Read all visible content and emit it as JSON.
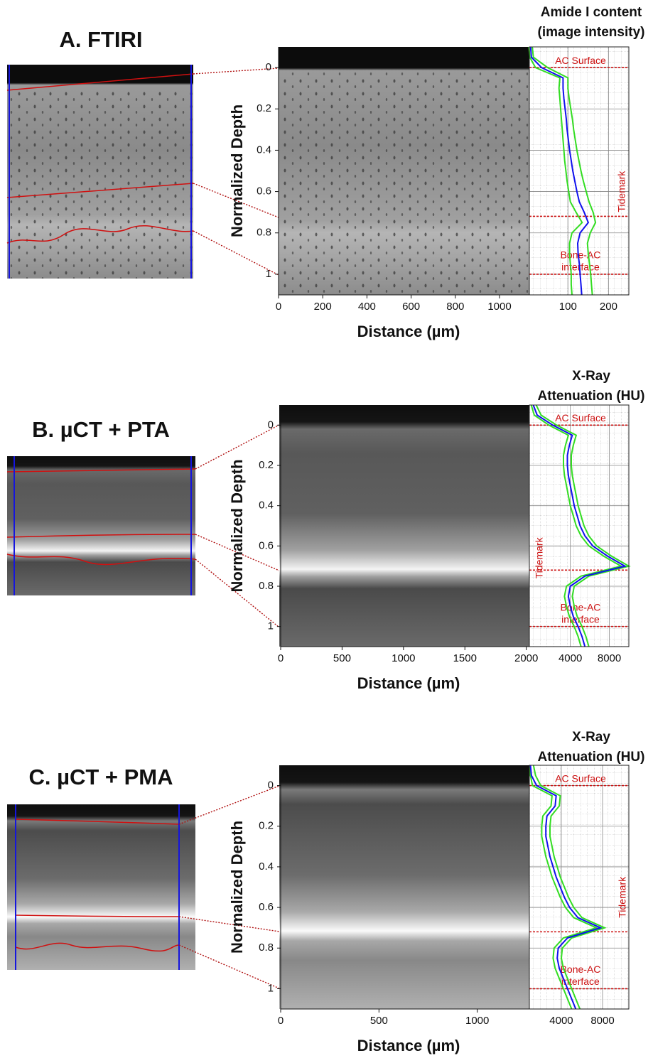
{
  "chart_data": [
    {
      "type": "line",
      "title": "A. FTIRI",
      "xlabel": "Distance (µm)",
      "ylabel": "Normalized Depth",
      "xlim": [
        0,
        1135
      ],
      "xticks": [
        0,
        200,
        400,
        600,
        800,
        1000
      ],
      "ylim": [
        -0.1,
        1.1
      ],
      "yticks": [
        0,
        0.2,
        0.4,
        0.6,
        0.8,
        1
      ],
      "profile_title": [
        "Amide I content",
        "(image intensity)"
      ],
      "profile_xlim": [
        5,
        250
      ],
      "profile_xticks": [
        100,
        200
      ],
      "grid": true,
      "depth": [
        -0.1,
        -0.05,
        0,
        0.05,
        0.1,
        0.15,
        0.2,
        0.25,
        0.3,
        0.35,
        0.4,
        0.45,
        0.5,
        0.55,
        0.6,
        0.65,
        0.7,
        0.75,
        0.8,
        0.85,
        0.9,
        0.95,
        1,
        1.05,
        1.1
      ],
      "series": [
        {
          "color": "#33dd22",
          "values": [
            12,
            15,
            50,
            100,
            100,
            103,
            107,
            111,
            114,
            118,
            122,
            127,
            132,
            138,
            145,
            152,
            162,
            168,
            155,
            148,
            150,
            153,
            156,
            158,
            160
          ]
        },
        {
          "color": "#33dd22",
          "values": [
            4,
            6,
            20,
            80,
            78,
            80,
            82,
            84,
            86,
            88,
            90,
            92,
            95,
            98,
            102,
            106,
            120,
            135,
            110,
            104,
            104,
            106,
            108,
            108,
            110
          ]
        },
        {
          "color": "#1010ee",
          "values": [
            8,
            10,
            35,
            88,
            88,
            90,
            93,
            96,
            98,
            101,
            104,
            108,
            112,
            117,
            122,
            128,
            140,
            150,
            130,
            124,
            125,
            128,
            130,
            132,
            134
          ]
        }
      ],
      "annotations": [
        {
          "text": [
            "AC Surface"
          ],
          "depth": 0
        },
        {
          "text": [
            "Tidemark"
          ],
          "depth": 0.72
        },
        {
          "text": [
            "Bone-AC",
            "interface"
          ],
          "depth": 1
        }
      ]
    },
    {
      "type": "line",
      "title": "B. µCT + PTA",
      "xlabel": "Distance (µm)",
      "ylabel": "Normalized Depth",
      "xlim": [
        0,
        2025
      ],
      "xticks": [
        0,
        500,
        1000,
        1500,
        2000
      ],
      "ylim": [
        -0.1,
        1.1
      ],
      "yticks": [
        0,
        0.2,
        0.4,
        0.6,
        0.8,
        1
      ],
      "profile_title": [
        "X-Ray",
        "Attenuation (HU)"
      ],
      "profile_xlim": [
        -200,
        10000
      ],
      "profile_xticks": [
        4000,
        8000
      ],
      "grid": true,
      "depth": [
        -0.1,
        -0.05,
        0,
        0.05,
        0.1,
        0.15,
        0.2,
        0.25,
        0.3,
        0.35,
        0.4,
        0.45,
        0.5,
        0.55,
        0.6,
        0.65,
        0.7,
        0.75,
        0.8,
        0.85,
        0.9,
        0.95,
        1,
        1.05,
        1.1
      ],
      "series": [
        {
          "color": "#33dd22",
          "values": [
            500,
            1000,
            2600,
            4600,
            4300,
            4100,
            4100,
            4200,
            4400,
            4600,
            4800,
            5100,
            5400,
            5900,
            6700,
            8200,
            10000,
            5900,
            4400,
            4200,
            4400,
            4700,
            5200,
            5600,
            5900
          ]
        },
        {
          "color": "#33dd22",
          "values": [
            0,
            300,
            1800,
            3800,
            3500,
            3300,
            3300,
            3400,
            3600,
            3800,
            4000,
            4300,
            4600,
            5100,
            5900,
            7400,
            9200,
            5100,
            3600,
            3400,
            3600,
            3900,
            4400,
            4800,
            5100
          ]
        },
        {
          "color": "#1010ee",
          "values": [
            200,
            600,
            2200,
            4200,
            3900,
            3700,
            3700,
            3800,
            4000,
            4200,
            4400,
            4700,
            5000,
            5500,
            6300,
            7800,
            9600,
            5500,
            4000,
            3800,
            4000,
            4300,
            4800,
            5200,
            5500
          ]
        }
      ],
      "annotations": [
        {
          "text": [
            "AC Surface"
          ],
          "depth": 0
        },
        {
          "text": [
            "Tidemark"
          ],
          "depth": 0.72
        },
        {
          "text": [
            "Bone-AC",
            "interface"
          ],
          "depth": 1
        }
      ]
    },
    {
      "type": "line",
      "title": "C. µCT + PMA",
      "xlabel": "Distance (µm)",
      "ylabel": "Normalized Depth",
      "xlim": [
        0,
        1265
      ],
      "xticks": [
        0,
        500,
        1000
      ],
      "ylim": [
        -0.1,
        1.1
      ],
      "yticks": [
        0,
        0.2,
        0.4,
        0.6,
        0.8,
        1
      ],
      "profile_title": [
        "X-Ray",
        "Attenuation (HU)"
      ],
      "profile_xlim": [
        900,
        10550
      ],
      "profile_xticks": [
        4000,
        8000
      ],
      "grid": true,
      "depth": [
        -0.1,
        -0.05,
        0,
        0.05,
        0.1,
        0.15,
        0.2,
        0.25,
        0.3,
        0.35,
        0.4,
        0.45,
        0.5,
        0.55,
        0.6,
        0.65,
        0.7,
        0.75,
        0.8,
        0.85,
        0.9,
        0.95,
        1,
        1.05,
        1.1
      ],
      "series": [
        {
          "color": "#33dd22",
          "values": [
            1300,
            1500,
            2000,
            3900,
            3800,
            3000,
            2900,
            2900,
            3100,
            3300,
            3600,
            3900,
            4300,
            4700,
            5200,
            6000,
            8200,
            5000,
            4100,
            4000,
            4200,
            4600,
            5000,
            5400,
            5800
          ]
        },
        {
          "color": "#33dd22",
          "values": [
            950,
            1000,
            1200,
            3100,
            3000,
            2200,
            2100,
            2100,
            2300,
            2500,
            2800,
            3100,
            3500,
            3900,
            4400,
            5200,
            7400,
            4200,
            3300,
            3200,
            3400,
            3800,
            4200,
            4600,
            5000
          ]
        },
        {
          "color": "#1010ee",
          "values": [
            1000,
            1100,
            1600,
            3500,
            3400,
            2600,
            2500,
            2500,
            2700,
            2900,
            3200,
            3500,
            3900,
            4300,
            4800,
            5600,
            7800,
            4600,
            3700,
            3600,
            3800,
            4200,
            4600,
            5000,
            5400
          ]
        }
      ],
      "annotations": [
        {
          "text": [
            "AC Surface"
          ],
          "depth": 0
        },
        {
          "text": [
            "Tidemark"
          ],
          "depth": 0.72
        },
        {
          "text": [
            "Bone-AC",
            "interface"
          ],
          "depth": 1
        }
      ]
    }
  ]
}
